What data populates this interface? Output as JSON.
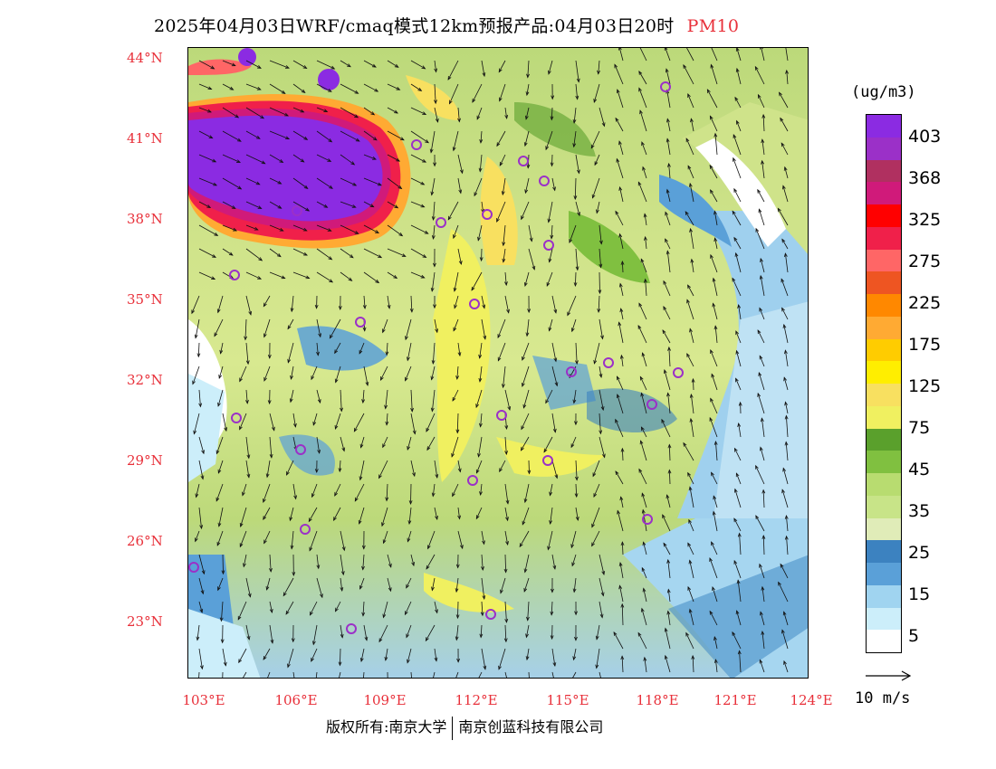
{
  "title": {
    "main": "2025年04月03日WRF/cmaq模式12km预报产品:04月03日20时",
    "pollutant": "PM10",
    "pollutant_color": "#e8303a"
  },
  "axes": {
    "lat_labels": [
      "44°N",
      "41°N",
      "38°N",
      "35°N",
      "32°N",
      "29°N",
      "26°N",
      "23°N"
    ],
    "lon_labels": [
      "103°E",
      "106°E",
      "109°E",
      "112°E",
      "115°E",
      "118°E",
      "121°E",
      "124°E"
    ],
    "label_color": "#e8303a"
  },
  "colorbar": {
    "unit": "(ug/m3)",
    "colors": [
      "#8b2be2",
      "#9b30c8",
      "#b03060",
      "#d01a7a",
      "#ff0000",
      "#f0204a",
      "#ff6666",
      "#ee5522",
      "#ff8800",
      "#ffaa33",
      "#ffcc00",
      "#ffee00",
      "#f8e060",
      "#f0f060",
      "#5aa02c",
      "#80c040",
      "#b8dc70",
      "#c8e488",
      "#e0ecb8",
      "#3c82c0",
      "#5aa0d8",
      "#a0d4f0",
      "#cceefa",
      "#ffffff"
    ],
    "labels": [
      "403",
      "368",
      "325",
      "275",
      "225",
      "175",
      "125",
      "75",
      "45",
      "35",
      "25",
      "15",
      "5"
    ]
  },
  "wind_legend": {
    "label": "10 m/s"
  },
  "credit": {
    "left": "版权所有:南京大学",
    "right": "南京创蓝科技有限公司"
  }
}
